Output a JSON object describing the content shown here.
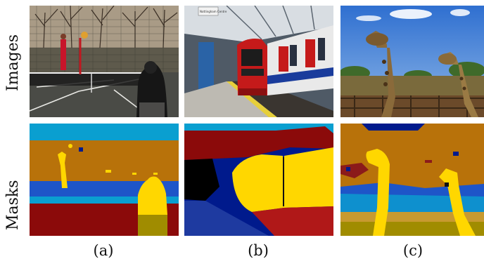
{
  "rows": {
    "images_label": "Images",
    "masks_label": "Masks"
  },
  "panels": [
    {
      "caption": "(a)",
      "image_subject": "tennis-court",
      "mask_subject": "tennis-court-segmentation"
    },
    {
      "caption": "(b)",
      "image_subject": "train-station",
      "mask_subject": "train-station-segmentation"
    },
    {
      "caption": "(c)",
      "image_subject": "giraffes",
      "mask_subject": "giraffes-segmentation"
    }
  ],
  "sign_text": "Nottingham\nCentre",
  "colors": {
    "mask_yellow": "#ffd700",
    "mask_orange": "#b8720a",
    "mask_cyan": "#0a9fd0",
    "mask_blue": "#1e55c8",
    "mask_darkred": "#8b0a0a",
    "mask_navy": "#001a8c",
    "mask_olive": "#a08c00"
  }
}
